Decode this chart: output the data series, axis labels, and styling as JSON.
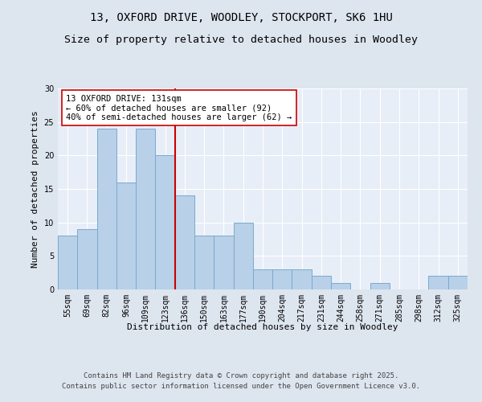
{
  "title_line1": "13, OXFORD DRIVE, WOODLEY, STOCKPORT, SK6 1HU",
  "title_line2": "Size of property relative to detached houses in Woodley",
  "xlabel": "Distribution of detached houses by size in Woodley",
  "ylabel": "Number of detached properties",
  "categories": [
    "55sqm",
    "69sqm",
    "82sqm",
    "96sqm",
    "109sqm",
    "123sqm",
    "136sqm",
    "150sqm",
    "163sqm",
    "177sqm",
    "190sqm",
    "204sqm",
    "217sqm",
    "231sqm",
    "244sqm",
    "258sqm",
    "271sqm",
    "285sqm",
    "298sqm",
    "312sqm",
    "325sqm"
  ],
  "values": [
    8,
    9,
    24,
    16,
    24,
    20,
    14,
    8,
    8,
    10,
    3,
    3,
    3,
    2,
    1,
    0,
    1,
    0,
    0,
    2,
    2
  ],
  "bar_color": "#b8d0e8",
  "bar_edge_color": "#7aaacf",
  "vline_x_index": 6,
  "vline_color": "#cc0000",
  "annotation_text": "13 OXFORD DRIVE: 131sqm\n← 60% of detached houses are smaller (92)\n40% of semi-detached houses are larger (62) →",
  "annotation_box_color": "#ffffff",
  "annotation_box_edge": "#cc0000",
  "ylim": [
    0,
    30
  ],
  "yticks": [
    0,
    5,
    10,
    15,
    20,
    25,
    30
  ],
  "bg_color": "#dde5ef",
  "plot_bg_color": "#e8eef7",
  "footer_line1": "Contains HM Land Registry data © Crown copyright and database right 2025.",
  "footer_line2": "Contains public sector information licensed under the Open Government Licence v3.0.",
  "title_fontsize": 10,
  "subtitle_fontsize": 9.5,
  "axis_label_fontsize": 8,
  "tick_fontsize": 7,
  "annotation_fontsize": 7.5,
  "footer_fontsize": 6.5
}
